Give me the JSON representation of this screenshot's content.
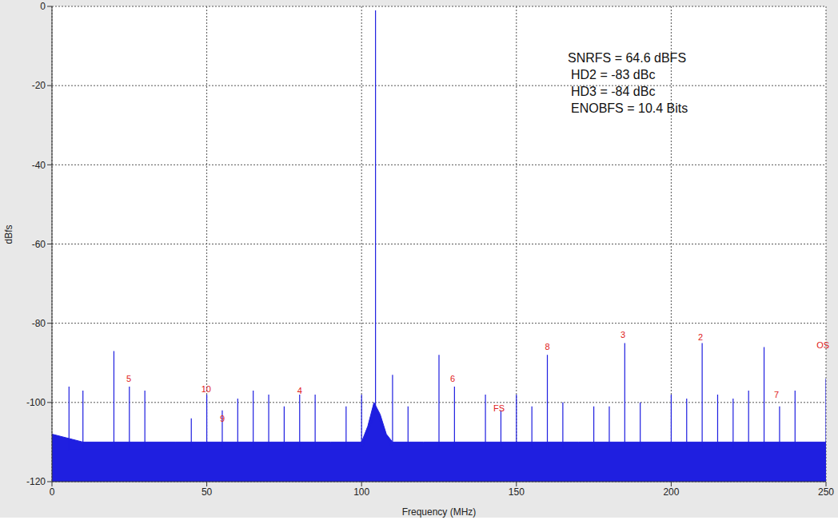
{
  "chart_data": {
    "type": "line",
    "x_label": "Frequency (MHz)",
    "y_label": "dBfs",
    "xlim": [
      0,
      250
    ],
    "xticks": [
      0,
      50,
      100,
      150,
      200,
      250
    ],
    "ylim": [
      -120,
      0
    ],
    "yticks": [
      -120,
      -100,
      -80,
      -60,
      -40,
      -20,
      0
    ],
    "grid": true,
    "annotations": [
      "SNRFS = 64.6 dBFS",
      "HD2 = -83 dBc",
      "HD3 = -84 dBc",
      "ENOBFS = 10.4 Bits"
    ],
    "harmonic_labels": [
      {
        "text": "5",
        "x": 24.8,
        "y": -94
      },
      {
        "text": "10",
        "x": 49.8,
        "y": -96.6
      },
      {
        "text": "9",
        "x": 55,
        "y": -104
      },
      {
        "text": "4",
        "x": 80,
        "y": -97
      },
      {
        "text": "6",
        "x": 129.4,
        "y": -94
      },
      {
        "text": "FS",
        "x": 144.4,
        "y": -101.5
      },
      {
        "text": "8",
        "x": 160,
        "y": -86
      },
      {
        "text": "3",
        "x": 184.4,
        "y": -83
      },
      {
        "text": "2",
        "x": 209.5,
        "y": -83.5
      },
      {
        "text": "7",
        "x": 234,
        "y": -98
      },
      {
        "text": "OS",
        "x": 249,
        "y": -85.5
      }
    ],
    "series": [
      {
        "type": "area",
        "color": "#1f1fe0",
        "x": [
          0,
          10,
          20,
          30,
          40,
          50,
          60,
          70,
          80,
          90,
          100,
          102,
          104,
          106,
          108,
          110,
          120,
          130,
          140,
          150,
          160,
          170,
          180,
          190,
          200,
          210,
          220,
          230,
          240,
          250
        ],
        "values": [
          -108,
          -110,
          -110,
          -110,
          -110,
          -110,
          -110,
          -110,
          -110,
          -110,
          -110,
          -106,
          -100,
          -103,
          -108,
          -110,
          -110,
          -110,
          -110,
          -110,
          -110,
          -110,
          -110,
          -110,
          -110,
          -110,
          -110,
          -110,
          -110,
          -110
        ]
      },
      {
        "type": "line",
        "color": "#1f1fe0",
        "x": [
          5.5,
          5.5,
          5.5,
          10,
          10,
          10,
          20,
          20,
          20,
          25,
          25,
          25,
          30,
          30,
          30,
          45,
          45,
          45,
          50,
          50,
          50,
          55,
          55,
          55,
          60,
          60,
          60,
          65,
          65,
          65,
          70,
          70,
          70,
          75,
          75,
          75,
          80,
          80,
          80,
          85,
          85,
          85,
          95,
          95,
          95,
          100,
          100,
          100,
          104.5,
          104.5,
          104.5,
          110,
          110,
          110,
          115,
          115,
          115,
          125,
          125,
          125,
          130,
          130,
          130,
          140,
          140,
          140,
          145,
          145,
          145,
          150,
          150,
          150,
          155,
          155,
          155,
          160,
          160,
          160,
          165,
          165,
          165,
          175,
          175,
          175,
          180,
          180,
          180,
          185,
          185,
          185,
          190,
          190,
          190,
          200,
          200,
          200,
          205,
          205,
          205,
          210,
          210,
          210,
          215,
          215,
          215,
          220,
          220,
          220,
          225,
          225,
          225,
          230,
          230,
          230,
          235,
          235,
          235,
          240,
          240,
          240,
          250,
          250,
          250
        ],
        "values": [
          -112,
          -96,
          -112,
          -112,
          -97,
          -112,
          -112,
          -87,
          -112,
          -112,
          -96,
          -112,
          -112,
          -97,
          -112,
          -112,
          -104,
          -112,
          -112,
          -98,
          -112,
          -112,
          -102,
          -112,
          -112,
          -99,
          -112,
          -112,
          -97,
          -112,
          -112,
          -98,
          -112,
          -112,
          -101,
          -112,
          -112,
          -98,
          -112,
          -112,
          -98,
          -112,
          -112,
          -101,
          -112,
          -112,
          -98,
          -112,
          -102,
          -1,
          -102,
          -112,
          -93,
          -112,
          -112,
          -101,
          -112,
          -112,
          -88,
          -112,
          -112,
          -96,
          -112,
          -112,
          -98,
          -112,
          -112,
          -102,
          -112,
          -112,
          -98,
          -112,
          -112,
          -101,
          -112,
          -112,
          -88,
          -112,
          -112,
          -100,
          -112,
          -112,
          -101,
          -112,
          -112,
          -101,
          -112,
          -112,
          -85,
          -112,
          -112,
          -100,
          -112,
          -112,
          -98,
          -112,
          -112,
          -99,
          -112,
          -112,
          -85,
          -112,
          -112,
          -98,
          -112,
          -112,
          -99,
          -112,
          -112,
          -97,
          -112,
          -112,
          -86,
          -112,
          -112,
          -101,
          -112,
          -112,
          -97,
          -112,
          -112,
          -94,
          -112
        ]
      }
    ]
  }
}
